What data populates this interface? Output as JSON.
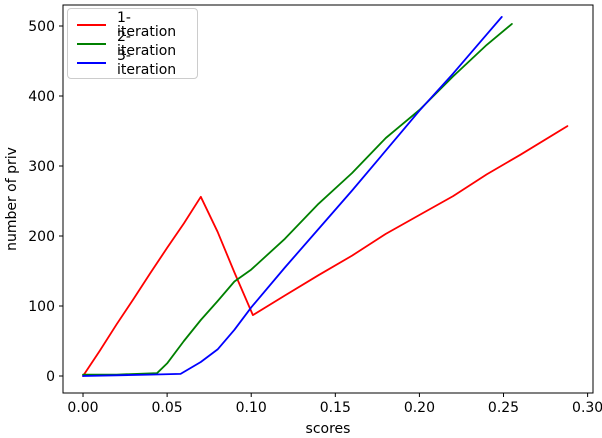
{
  "chart_data": {
    "type": "line",
    "title": "",
    "xlabel": "scores",
    "ylabel": "number of priv",
    "xlim": [
      -0.0119,
      0.3032
    ],
    "ylim": [
      -24.3,
      530
    ],
    "grid": false,
    "legend_position": "upper-left",
    "xticks": [
      0.0,
      0.05,
      0.1,
      0.15,
      0.2,
      0.25,
      0.3
    ],
    "xtick_labels": [
      "0.00",
      "0.05",
      "0.10",
      "0.15",
      "0.20",
      "0.25",
      "0.30"
    ],
    "yticks": [
      0,
      100,
      200,
      300,
      400,
      500
    ],
    "ytick_labels": [
      "0",
      "100",
      "200",
      "300",
      "400",
      "500"
    ],
    "series": [
      {
        "name": "1-iteration",
        "color": "#ff0000",
        "x": [
          0.0,
          0.01,
          0.02,
          0.03,
          0.04,
          0.05,
          0.06,
          0.07,
          0.08,
          0.09,
          0.101,
          0.12,
          0.14,
          0.16,
          0.18,
          0.2,
          0.22,
          0.24,
          0.26,
          0.288
        ],
        "y": [
          0,
          36,
          74,
          110,
          147,
          183,
          218,
          256,
          206,
          148,
          87,
          115,
          144,
          172,
          203,
          230,
          257,
          288,
          316,
          357
        ]
      },
      {
        "name": "2-iteration",
        "color": "#008000",
        "x": [
          0.0,
          0.02,
          0.044,
          0.05,
          0.06,
          0.07,
          0.08,
          0.09,
          0.1,
          0.12,
          0.14,
          0.16,
          0.18,
          0.2,
          0.22,
          0.24,
          0.255
        ],
        "y": [
          2,
          2,
          4,
          18,
          50,
          80,
          107,
          135,
          152,
          196,
          246,
          290,
          340,
          380,
          428,
          473,
          503
        ]
      },
      {
        "name": "3-iteration",
        "color": "#0000ff",
        "x": [
          0.0,
          0.02,
          0.04,
          0.058,
          0.07,
          0.08,
          0.09,
          0.1,
          0.12,
          0.14,
          0.16,
          0.18,
          0.2,
          0.22,
          0.24,
          0.249
        ],
        "y": [
          0,
          1,
          2,
          3,
          20,
          38,
          66,
          98,
          155,
          210,
          265,
          322,
          379,
          432,
          488,
          513
        ]
      }
    ]
  }
}
